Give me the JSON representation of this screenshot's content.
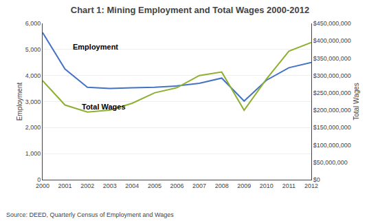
{
  "chart_data": {
    "type": "line",
    "title": "Chart 1: Mining Employment and Total Wages 2000-2012",
    "source": "Source: DEED, Quarterly Census of Employment and Wages",
    "x": [
      2000,
      2001,
      2002,
      2003,
      2004,
      2005,
      2006,
      2007,
      2008,
      2009,
      2010,
      2011,
      2012
    ],
    "series": [
      {
        "name": "Employment",
        "color": "#4472C4",
        "values": [
          5650,
          4250,
          3550,
          3500,
          3530,
          3550,
          3600,
          3700,
          3900,
          3020,
          3820,
          4300,
          4500
        ]
      },
      {
        "name": "Total Wages",
        "color": "#8DB030",
        "axis": "y2",
        "values": [
          285000000,
          215000000,
          195000000,
          200000000,
          220000000,
          250000000,
          265000000,
          300000000,
          310000000,
          200000000,
          290000000,
          370000000,
          395000000
        ]
      }
    ],
    "xlim": [
      2000,
      2012
    ],
    "xticks": [
      2000,
      2001,
      2002,
      2003,
      2004,
      2005,
      2006,
      2007,
      2008,
      2009,
      2010,
      2011,
      2012
    ],
    "y_label": "Employment",
    "ylim": [
      0,
      6000
    ],
    "yticks": [
      0,
      {
        "value": 1000,
        "label": "1,000"
      },
      {
        "value": 2000,
        "label": "2,000"
      },
      {
        "value": 3000,
        "label": "3,000"
      },
      {
        "value": 4000,
        "label": "4,000"
      },
      {
        "value": 5000,
        "label": "5,000"
      },
      {
        "value": 6000,
        "label": "6,000"
      }
    ],
    "y2_label": "Total Wages",
    "y2lim": [
      0,
      450000000
    ],
    "y2ticks": [
      {
        "value": 0,
        "label": "$0"
      },
      {
        "value": 50000000,
        "label": "$50,000,000"
      },
      {
        "value": 100000000,
        "label": "$100,000,000"
      },
      {
        "value": 150000000,
        "label": "$150,000,000"
      },
      {
        "value": 200000000,
        "label": "$200,000,000"
      },
      {
        "value": 250000000,
        "label": "$250,000,000"
      },
      {
        "value": 300000000,
        "label": "$300,000,000"
      },
      {
        "value": 350000000,
        "label": "$350,000,000"
      },
      {
        "value": 400000000,
        "label": "$400,000,000"
      },
      {
        "value": 450000000,
        "label": "$450,000,000"
      }
    ],
    "annotations": [
      {
        "text": "Employment",
        "x": 2001.3,
        "y": 4900
      },
      {
        "text": "Total Wages",
        "x": 2001.7,
        "y": 2580
      }
    ],
    "grid": true
  }
}
